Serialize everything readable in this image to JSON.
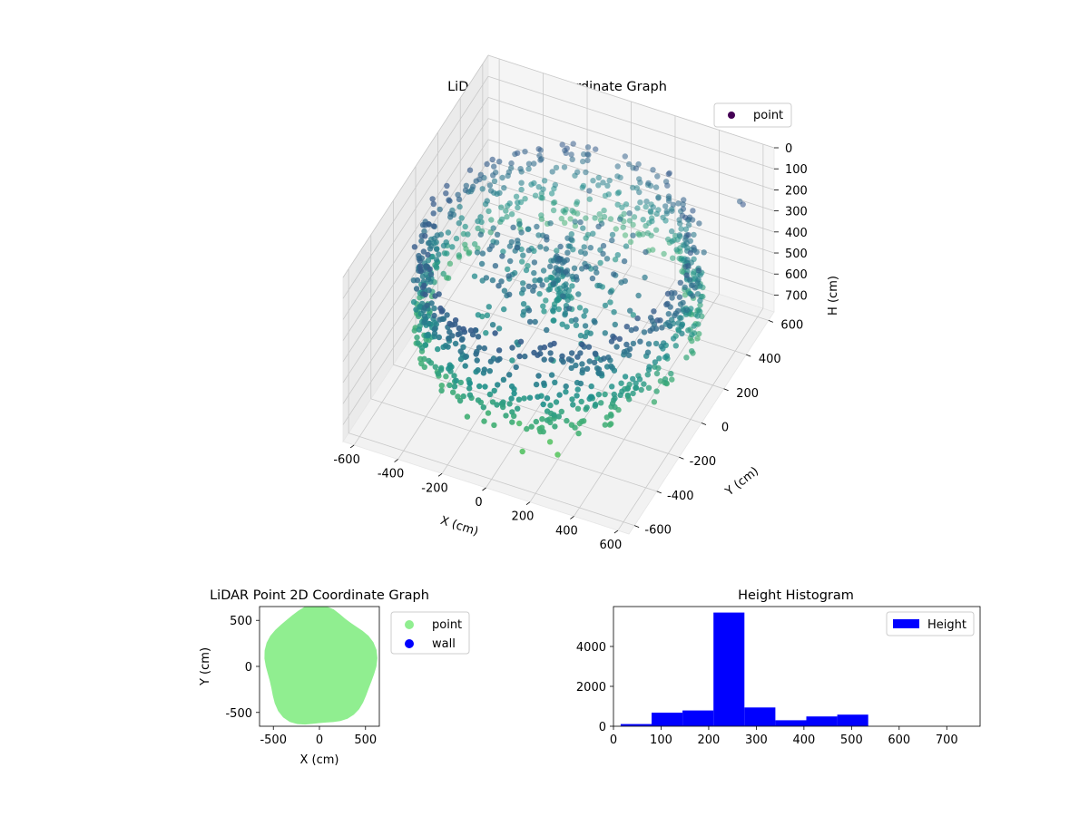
{
  "figure": {
    "background": "#ffffff"
  },
  "chart_data": [
    {
      "type": "scatter",
      "projection": "3d",
      "title": "LiDAR Point 3D Coordinate Graph",
      "xlabel": "X (cm)",
      "ylabel": "Y (cm)",
      "zlabel": "H (cm)",
      "xlim": [
        -650,
        650
      ],
      "ylim": [
        -650,
        650
      ],
      "zlim": [
        780,
        0
      ],
      "x_ticks": [
        "-600",
        "-400",
        "-200",
        "0",
        "200",
        "400",
        "600"
      ],
      "y_ticks": [
        "-600",
        "-400",
        "-200",
        "0",
        "200",
        "400",
        "600"
      ],
      "z_ticks": [
        "0",
        "100",
        "200",
        "300",
        "400",
        "500",
        "600",
        "700"
      ],
      "z_inverted": true,
      "grid": true,
      "colormap": "viridis",
      "legend": {
        "placement": "upper-right",
        "entries": [
          "point"
        ]
      },
      "series": [
        {
          "name": "point",
          "color": "#440154",
          "description_shape": "ring",
          "ring_radius": 560,
          "ring_height_range": [
            150,
            550
          ],
          "inner_cluster_height_range": [
            200,
            420
          ],
          "outliers": [
            {
              "x": 200,
              "y": -470,
              "h": 640
            },
            {
              "x": 250,
              "y": -500,
              "h": 660
            },
            {
              "x": 120,
              "y": -560,
              "h": 640
            },
            {
              "x": 60,
              "y": -470,
              "h": 600
            },
            {
              "x": 560,
              "y": 520,
              "h": 180
            },
            {
              "x": 600,
              "y": 470,
              "h": 140
            }
          ]
        }
      ]
    },
    {
      "type": "scatter",
      "title": "LiDAR Point 2D Coordinate Graph",
      "xlabel": "X (cm)",
      "ylabel": "Y (cm)",
      "xlim": [
        -650,
        650
      ],
      "ylim": [
        -650,
        650
      ],
      "x_ticks": [
        "-500",
        "0",
        "500"
      ],
      "y_ticks": [
        "-500",
        "0",
        "500"
      ],
      "legend": {
        "placement": "outside-right",
        "entries": [
          "point",
          "wall"
        ]
      },
      "series": [
        {
          "name": "point",
          "color": "#90ee90",
          "shape": "filled-disc",
          "radius": 600
        },
        {
          "name": "wall",
          "color": "#0000ff",
          "values": []
        }
      ]
    },
    {
      "type": "bar",
      "subtype": "histogram",
      "title": "Height Histogram",
      "xlim": [
        0,
        770
      ],
      "ylim": [
        0,
        6000
      ],
      "x_ticks": [
        "0",
        "100",
        "200",
        "300",
        "400",
        "500",
        "600",
        "700"
      ],
      "y_ticks": [
        "0",
        "2000",
        "4000"
      ],
      "legend": {
        "placement": "upper-right",
        "entries": [
          "Height"
        ]
      },
      "series": [
        {
          "name": "Height",
          "color": "#0000ff",
          "bins": [
            {
              "start": 15,
              "end": 80,
              "count": 110
            },
            {
              "start": 80,
              "end": 145,
              "count": 680
            },
            {
              "start": 145,
              "end": 210,
              "count": 790
            },
            {
              "start": 210,
              "end": 275,
              "count": 5700
            },
            {
              "start": 275,
              "end": 340,
              "count": 940
            },
            {
              "start": 340,
              "end": 405,
              "count": 300
            },
            {
              "start": 405,
              "end": 470,
              "count": 490
            },
            {
              "start": 470,
              "end": 535,
              "count": 580
            }
          ]
        }
      ]
    }
  ]
}
